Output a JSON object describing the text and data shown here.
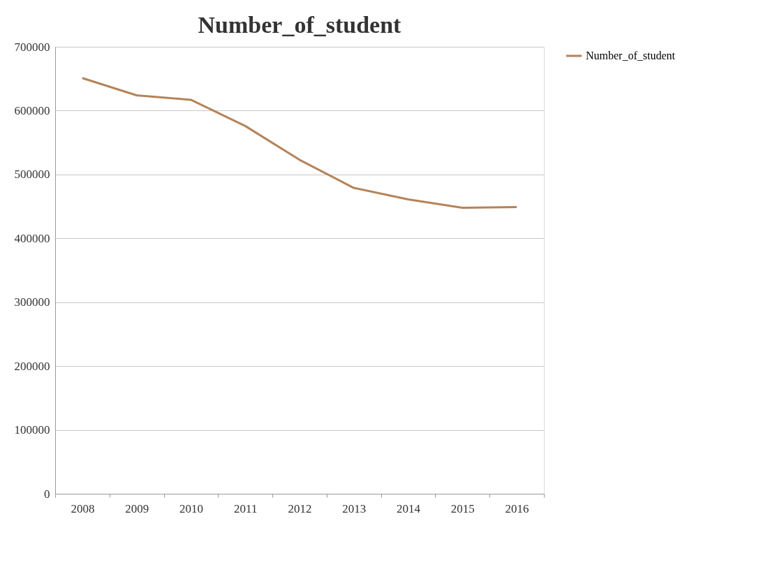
{
  "chart_data": {
    "type": "line",
    "title": "Number_of_student",
    "categories": [
      "2008",
      "2009",
      "2010",
      "2011",
      "2012",
      "2013",
      "2014",
      "2015",
      "2016"
    ],
    "series": [
      {
        "name": "Number_of_student",
        "color": "#b5835a",
        "values": [
          651000,
          624000,
          617000,
          576000,
          523000,
          479000,
          461000,
          448000,
          449000
        ]
      }
    ],
    "ylim": [
      0,
      700000
    ],
    "yticks": [
      0,
      100000,
      200000,
      300000,
      400000,
      500000,
      600000,
      700000
    ],
    "grid": "y",
    "legend": "right",
    "marker": "none",
    "line_style": "solid"
  }
}
